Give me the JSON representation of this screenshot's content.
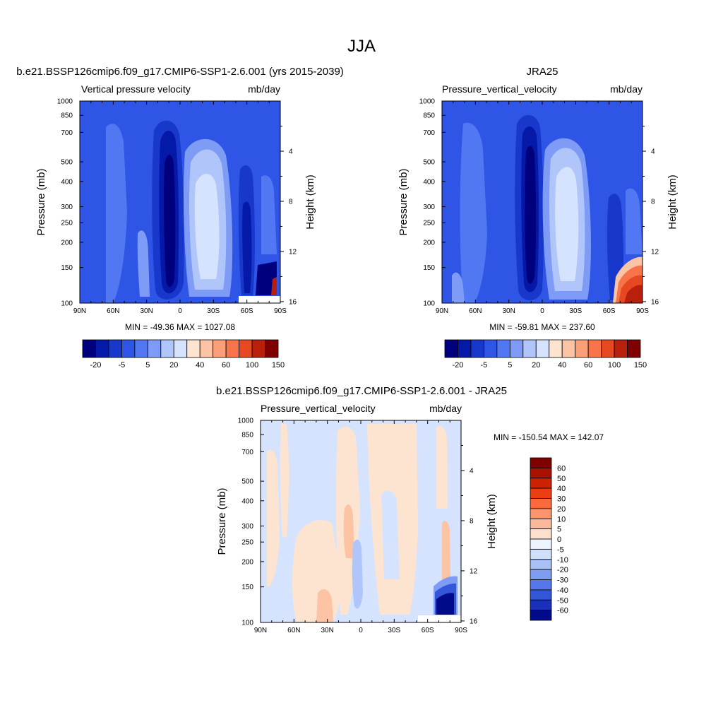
{
  "page_title": "JJA",
  "chart_data": [
    {
      "type": "heatmap",
      "title": "b.e21.BSSP126cmip6.f09_g17.CMIP6-SSP1-2.6.001 (yrs 2015-2039)",
      "variable": "Vertical pressure velocity",
      "units": "mb/day",
      "ylabel": "Pressure (mb)",
      "ylabel_right": "Height (km)",
      "x_ticks": [
        "90N",
        "60N",
        "30N",
        "0",
        "30S",
        "60S",
        "90S"
      ],
      "y_ticks": [
        "100",
        "150",
        "200",
        "250",
        "300",
        "400",
        "500",
        "700",
        "850",
        "1000"
      ],
      "y_ticks_right": [
        "16",
        "12",
        "8",
        "4"
      ],
      "y_scale": "log",
      "ylim": [
        1000,
        100
      ],
      "stats": "MIN = -49.36  MAX = 1027.08",
      "colorbar_levels": [
        -30,
        -20,
        -10,
        -5,
        0,
        5,
        10,
        20,
        30,
        40,
        50,
        60,
        100,
        150,
        200
      ],
      "colorbar_labels": [
        "-20",
        "-5",
        "5",
        "20",
        "40",
        "60",
        "100",
        "150"
      ],
      "colorbar_orientation": "horizontal"
    },
    {
      "type": "heatmap",
      "title": "JRA25",
      "variable": "Pressure_vertical_velocity",
      "units": "mb/day",
      "ylabel": "Pressure (mb)",
      "ylabel_right": "Height (km)",
      "x_ticks": [
        "90N",
        "60N",
        "30N",
        "0",
        "30S",
        "60S",
        "90S"
      ],
      "y_ticks": [
        "100",
        "150",
        "200",
        "250",
        "300",
        "400",
        "500",
        "700",
        "850",
        "1000"
      ],
      "y_ticks_right": [
        "16",
        "12",
        "8",
        "4"
      ],
      "y_scale": "log",
      "ylim": [
        1000,
        100
      ],
      "stats": "MIN = -59.81  MAX = 237.60",
      "colorbar_levels": [
        -30,
        -20,
        -10,
        -5,
        0,
        5,
        10,
        20,
        30,
        40,
        50,
        60,
        100,
        150,
        200
      ],
      "colorbar_labels": [
        "-20",
        "-5",
        "5",
        "20",
        "40",
        "60",
        "100",
        "150"
      ],
      "colorbar_orientation": "horizontal"
    },
    {
      "type": "heatmap",
      "title": "b.e21.BSSP126cmip6.f09_g17.CMIP6-SSP1-2.6.001 - JRA25",
      "variable": "Pressure_vertical_velocity",
      "units": "mb/day",
      "ylabel": "Pressure (mb)",
      "ylabel_right": "Height (km)",
      "x_ticks": [
        "90N",
        "60N",
        "30N",
        "0",
        "30S",
        "60S",
        "90S"
      ],
      "y_ticks": [
        "100",
        "150",
        "200",
        "250",
        "300",
        "400",
        "500",
        "700",
        "850",
        "1000"
      ],
      "y_ticks_right": [
        "16",
        "12",
        "8",
        "4"
      ],
      "y_scale": "log",
      "ylim": [
        1000,
        100
      ],
      "stats": "MIN = -150.54  MAX = 142.07",
      "colorbar_labels": [
        "60",
        "50",
        "40",
        "30",
        "20",
        "10",
        "5",
        "0",
        "-5",
        "-10",
        "-20",
        "-30",
        "-40",
        "-50",
        "-60"
      ],
      "colorbar_orientation": "vertical"
    }
  ],
  "palettes": {
    "abs": [
      "#00007f",
      "#0519a8",
      "#1838cc",
      "#2f55e6",
      "#5177f2",
      "#7e9cf6",
      "#b0c5fa",
      "#d6e3ff",
      "#fde4d0",
      "#fcc3a5",
      "#fb9f78",
      "#f7744a",
      "#e64822",
      "#b8200c",
      "#7f0000"
    ],
    "diff": [
      "#7f0000",
      "#a81000",
      "#cc2200",
      "#ec3e12",
      "#fb6a3a",
      "#fc9470",
      "#fcb89a",
      "#fde0cc",
      "#eef4ff",
      "#d0e0fb",
      "#a8c0f6",
      "#7e9cf2",
      "#5577ea",
      "#3355d8",
      "#1a30b8",
      "#000b8a"
    ]
  }
}
